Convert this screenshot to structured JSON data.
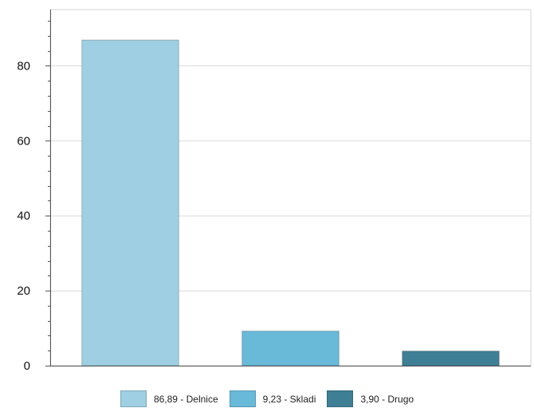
{
  "chart_data": {
    "type": "bar",
    "title": "",
    "xlabel": "",
    "ylabel": "",
    "ylim": [
      0,
      95
    ],
    "yticks": [
      0,
      20,
      40,
      60,
      80
    ],
    "categories": [
      "Delnice",
      "Skladi",
      "Drugo"
    ],
    "values": [
      86.89,
      9.23,
      3.9
    ],
    "colors": [
      "#9ecfe2",
      "#69b9d9",
      "#3f7f96"
    ],
    "grid": true,
    "legend_position": "bottom",
    "legend": [
      {
        "label": "86,89 - Delnice",
        "color": "#9ecfe2"
      },
      {
        "label": "9,23 - Skladi",
        "color": "#69b9d9"
      },
      {
        "label": "3,90 - Drugo",
        "color": "#3f7f96"
      }
    ]
  }
}
